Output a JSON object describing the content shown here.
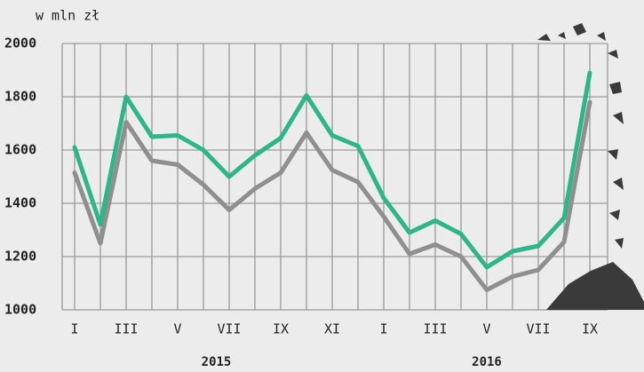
{
  "chart_data": {
    "type": "line",
    "unit_label": "w mln zł",
    "categories": [
      "I",
      null,
      "III",
      null,
      "V",
      null,
      "VII",
      null,
      "IX",
      null,
      "XI",
      null,
      "I",
      null,
      "III",
      null,
      "V",
      null,
      "VII",
      null,
      "IX"
    ],
    "year_labels": [
      "2015",
      "2016"
    ],
    "series": [
      {
        "color": "#8f8f8f",
        "values": [
          1515,
          1250,
          1705,
          1560,
          1545,
          1470,
          1375,
          1455,
          1515,
          1665,
          1525,
          1480,
          1350,
          1210,
          1245,
          1200,
          1075,
          1125,
          1150,
          1255,
          1780
        ]
      },
      {
        "color": "#2db68a",
        "values": [
          1610,
          1320,
          1800,
          1650,
          1655,
          1600,
          1500,
          1580,
          1645,
          1805,
          1655,
          1615,
          1420,
          1290,
          1335,
          1285,
          1160,
          1220,
          1240,
          1345,
          1890
        ]
      }
    ],
    "ylim": [
      1000,
      2000
    ],
    "yticks": [
      1000,
      1200,
      1400,
      1600,
      1800,
      2000
    ],
    "grid": true
  }
}
